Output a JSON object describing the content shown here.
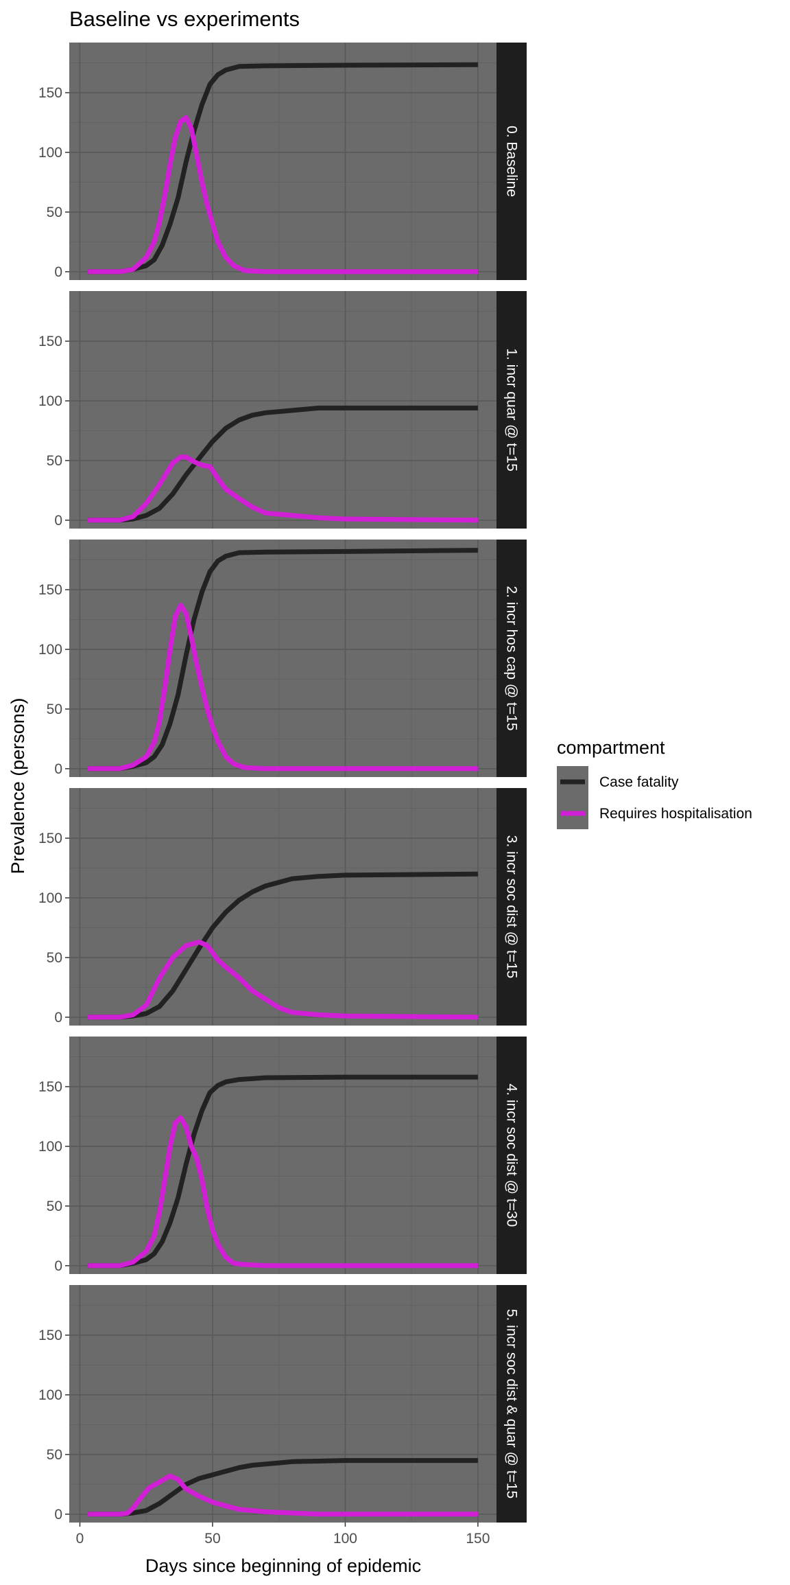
{
  "chart_data": {
    "type": "line",
    "title": "Baseline vs experiments",
    "xlabel": "Days since beginning of epidemic",
    "ylabel": "Prevalence (persons)",
    "xlim": [
      -4,
      157
    ],
    "ylim": [
      -7,
      192
    ],
    "x_ticks": [
      0,
      50,
      100,
      150
    ],
    "y_ticks": [
      0,
      50,
      100,
      150
    ],
    "grid": true,
    "legend": {
      "title": "compartment",
      "position": "right",
      "entries": [
        {
          "name": "Case fatality",
          "color": "#222222"
        },
        {
          "name": "Requires hospitalisation",
          "color": "#d11fd5"
        }
      ]
    },
    "colors": {
      "panel_background": "#6b6b6b",
      "strip_background": "#1e1e1e",
      "strip_text": "#ffffff",
      "major_grid": "#595959",
      "minor_grid": "#626262",
      "case_fatality": "#222222",
      "requires_hospitalisation": "#d11fd5"
    },
    "facets": [
      {
        "label": "0. Baseline",
        "series": [
          {
            "name": "Case fatality",
            "x": [
              3,
              15,
              20,
              25,
              28,
              31,
              34,
              37,
              40,
              43,
              46,
              49,
              52,
              55,
              60,
              70,
              100,
              150
            ],
            "y": [
              0,
              0,
              2,
              5,
              10,
              22,
              40,
              62,
              92,
              118,
              140,
              157,
              165,
              169,
              172,
              172.5,
              173,
              173.5
            ]
          },
          {
            "name": "Requires hospitalisation",
            "x": [
              3,
              15,
              20,
              25,
              28,
              30,
              32,
              34,
              36,
              38,
              40,
              42,
              44,
              46,
              48,
              50,
              52,
              55,
              58,
              62,
              70,
              100,
              150
            ],
            "y": [
              0,
              0,
              2,
              12,
              25,
              42,
              64,
              90,
              113,
              126,
              129,
              120,
              98,
              75,
              56,
              40,
              25,
              12,
              5,
              1,
              0,
              0,
              0
            ]
          }
        ]
      },
      {
        "label": "1. incr quar @ t=15",
        "series": [
          {
            "name": "Case fatality",
            "x": [
              3,
              15,
              20,
              25,
              30,
              35,
              40,
              45,
              50,
              55,
              60,
              65,
              70,
              80,
              90,
              100,
              150
            ],
            "y": [
              0,
              0,
              1,
              4,
              10,
              22,
              38,
              52,
              66,
              77,
              84,
              88,
              90,
              92,
              94,
              94,
              94
            ]
          },
          {
            "name": "Requires hospitalisation",
            "x": [
              3,
              15,
              20,
              25,
              30,
              35,
              38,
              40,
              43,
              46,
              49,
              52,
              55,
              60,
              65,
              70,
              80,
              90,
              100,
              150
            ],
            "y": [
              0,
              0,
              3,
              14,
              30,
              48,
              53,
              53,
              49,
              46,
              45,
              35,
              26,
              18,
              11,
              6,
              4,
              2,
              1,
              0
            ]
          }
        ]
      },
      {
        "label": "2. incr hos cap @ t=15",
        "series": [
          {
            "name": "Case fatality",
            "x": [
              3,
              15,
              20,
              25,
              28,
              31,
              34,
              37,
              40,
              43,
              46,
              49,
              52,
              55,
              60,
              70,
              100,
              150
            ],
            "y": [
              0,
              0,
              2,
              5,
              10,
              20,
              38,
              62,
              95,
              125,
              148,
              165,
              174,
              178,
              181,
              181.5,
              182,
              183
            ]
          },
          {
            "name": "Requires hospitalisation",
            "x": [
              3,
              15,
              20,
              25,
              28,
              30,
              32,
              34,
              36,
              38,
              40,
              42,
              44,
              46,
              48,
              50,
              52,
              55,
              58,
              62,
              70,
              100,
              150
            ],
            "y": [
              0,
              0,
              3,
              10,
              22,
              40,
              68,
              100,
              128,
              137,
              130,
              110,
              88,
              68,
              50,
              35,
              23,
              10,
              4,
              1,
              0,
              0,
              0
            ]
          }
        ]
      },
      {
        "label": "3. incr soc dist @ t=15",
        "series": [
          {
            "name": "Case fatality",
            "x": [
              3,
              15,
              20,
              25,
              30,
              35,
              40,
              45,
              50,
              55,
              60,
              65,
              70,
              75,
              80,
              90,
              100,
              150
            ],
            "y": [
              0,
              0,
              1,
              3,
              9,
              22,
              40,
              58,
              75,
              88,
              98,
              105,
              110,
              113,
              116,
              118,
              119,
              120
            ]
          },
          {
            "name": "Requires hospitalisation",
            "x": [
              3,
              15,
              20,
              25,
              30,
              35,
              40,
              45,
              48,
              52,
              55,
              60,
              65,
              70,
              75,
              80,
              90,
              100,
              150
            ],
            "y": [
              0,
              0,
              2,
              10,
              33,
              50,
              60,
              63,
              60,
              48,
              42,
              33,
              22,
              15,
              8,
              4,
              2,
              1,
              0
            ]
          }
        ]
      },
      {
        "label": "4. incr soc dist @ t=30",
        "series": [
          {
            "name": "Case fatality",
            "x": [
              3,
              15,
              20,
              25,
              28,
              31,
              34,
              37,
              40,
              43,
              46,
              49,
              52,
              55,
              60,
              70,
              100,
              150
            ],
            "y": [
              0,
              0,
              2,
              5,
              10,
              20,
              36,
              57,
              85,
              110,
              130,
              145,
              151,
              154,
              156,
              157.5,
              158,
              158
            ]
          },
          {
            "name": "Requires hospitalisation",
            "x": [
              3,
              15,
              20,
              25,
              28,
              30,
              32,
              34,
              36,
              38,
              40,
              42,
              44,
              46,
              48,
              50,
              52,
              55,
              58,
              62,
              70,
              100,
              150
            ],
            "y": [
              0,
              0,
              3,
              12,
              25,
              45,
              72,
              100,
              120,
              124,
              116,
              100,
              90,
              72,
              48,
              30,
              18,
              7,
              2,
              1,
              0,
              0,
              0
            ]
          }
        ]
      },
      {
        "label": "5. incr soc dist & quar @ t=15",
        "series": [
          {
            "name": "Case fatality",
            "x": [
              3,
              15,
              20,
              25,
              30,
              35,
              40,
              45,
              50,
              55,
              60,
              65,
              70,
              75,
              80,
              90,
              100,
              150
            ],
            "y": [
              0,
              0,
              1,
              3,
              9,
              17,
              25,
              30,
              33,
              36,
              39,
              41,
              42,
              43,
              44,
              44.5,
              45,
              45
            ]
          },
          {
            "name": "Requires hospitalisation",
            "x": [
              3,
              15,
              18,
              20,
              23,
              26,
              30,
              34,
              37,
              40,
              45,
              50,
              55,
              60,
              65,
              70,
              80,
              90,
              100,
              150
            ],
            "y": [
              0,
              0,
              1,
              5,
              14,
              22,
              27,
              32,
              29,
              21,
              15,
              10,
              7,
              4,
              3,
              2,
              1,
              0,
              0,
              0
            ]
          }
        ]
      }
    ]
  }
}
